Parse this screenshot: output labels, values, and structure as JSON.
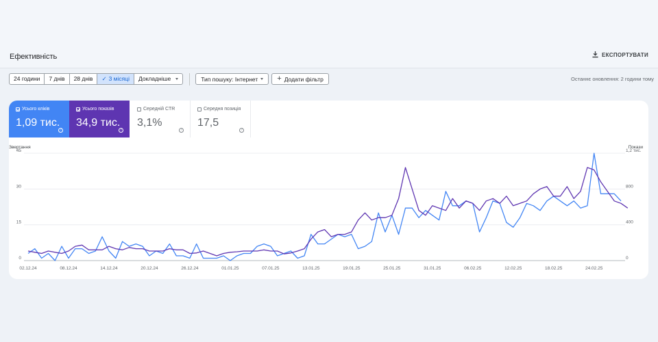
{
  "header": {
    "title": "Ефективність",
    "export_label": "ЕКСПОРТУВАТИ"
  },
  "filters": {
    "ranges": [
      {
        "label": "24 години",
        "active": false
      },
      {
        "label": "7 днів",
        "active": false
      },
      {
        "label": "28 днів",
        "active": false
      },
      {
        "label": "3 місяці",
        "active": true
      },
      {
        "label": "Докладніше",
        "active": false
      }
    ],
    "search_type": "Тип пошуку: Інтернет",
    "add_filter": "Додати фільтр",
    "updated": "Останнє оновлення: 2 години тому"
  },
  "metrics": {
    "clicks": {
      "label": "Усього кліків",
      "value": "1,09 тис.",
      "checked": true
    },
    "impressions": {
      "label": "Усього показів",
      "value": "34,9 тис.",
      "checked": true
    },
    "ctr": {
      "label": "Середній CTR",
      "value": "3,1%",
      "checked": false
    },
    "position": {
      "label": "Середня позиція",
      "value": "17,5",
      "checked": false
    }
  },
  "colors": {
    "clicks": "#4285f4",
    "impressions": "#5e35b1",
    "accent": "#1967d2"
  },
  "chart_data": {
    "type": "line",
    "left_axis_label": "Звертання",
    "right_axis_label": "Покази",
    "left_ticks": [
      "45",
      "30",
      "15",
      "0"
    ],
    "right_ticks": [
      "1,2 тис.",
      "800",
      "400",
      "0"
    ],
    "ylim_left": [
      0,
      45
    ],
    "ylim_right": [
      0,
      1200
    ],
    "x_ticks": [
      "02.12.24",
      "08.12.24",
      "14.12.24",
      "20.12.24",
      "26.12.24",
      "01.01.25",
      "07.01.25",
      "13.01.25",
      "19.01.25",
      "25.01.25",
      "31.01.25",
      "06.02.25",
      "12.02.25",
      "18.02.25",
      "24.02.25"
    ],
    "x_tick_index": [
      0,
      6,
      12,
      18,
      24,
      30,
      36,
      42,
      48,
      54,
      60,
      66,
      72,
      78,
      84
    ],
    "series": [
      {
        "name": "Усього кліків",
        "axis": "left",
        "color": "#4285f4",
        "values": [
          3,
          5,
          1,
          3,
          0,
          6,
          1,
          5,
          5,
          3,
          4,
          10,
          4,
          1,
          8,
          6,
          7,
          6,
          2,
          4,
          3,
          7,
          2,
          2,
          1,
          7,
          1,
          1,
          1,
          2,
          0,
          2,
          3,
          3,
          6,
          7,
          6,
          2,
          3,
          4,
          1,
          2,
          11,
          7,
          7,
          9,
          11,
          10,
          11,
          5,
          6,
          8,
          20,
          12,
          19,
          11,
          22,
          22,
          18,
          21,
          19,
          17,
          29,
          23,
          23,
          25,
          24,
          12,
          18,
          25,
          24,
          16,
          14,
          18,
          24,
          23,
          21,
          25,
          27,
          25,
          23,
          25,
          22,
          23,
          45,
          28,
          28,
          28,
          25
        ]
      },
      {
        "name": "Усього показів",
        "axis": "left",
        "color": "#5e35b1",
        "values": [
          4,
          3.5,
          3,
          4,
          3.5,
          3,
          4,
          6,
          6.5,
          4.5,
          4.5,
          4.5,
          6,
          5,
          4.5,
          5.5,
          5,
          5,
          4,
          4,
          4,
          5,
          4.5,
          4.5,
          3,
          3.2,
          4,
          3,
          2,
          3,
          3.5,
          3.7,
          4,
          4,
          4,
          4.5,
          4,
          4,
          2.8,
          3.2,
          4,
          5,
          9,
          12,
          13,
          10,
          11,
          11,
          12,
          17,
          20,
          17,
          18,
          18,
          19,
          26,
          39,
          30,
          21,
          19,
          23,
          22,
          21,
          26,
          22,
          25,
          24,
          21,
          25,
          26,
          24,
          27,
          23,
          24,
          25,
          28,
          30,
          31,
          27,
          27,
          31,
          26,
          29,
          39,
          38,
          33,
          29,
          25,
          24,
          22
        ]
      }
    ]
  }
}
